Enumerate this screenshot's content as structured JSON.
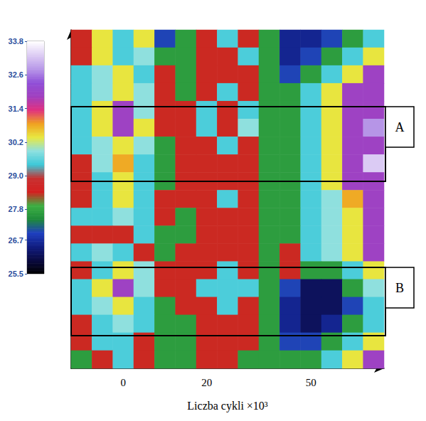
{
  "chart_data": {
    "type": "heatmap",
    "x_label": "Liczba cykli ×10³",
    "tick_labels": "x",
    "categories": [
      null,
      null,
      "0",
      null,
      null,
      null,
      "20",
      null,
      null,
      null,
      null,
      "50",
      null,
      null,
      null
    ],
    "cells": [
      [
        28.4,
        30.4,
        29.5,
        30.4,
        27.0,
        27.7,
        28.4,
        29.5,
        28.4,
        27.7,
        26.6,
        26.6,
        27.0,
        27.7,
        29.5
      ],
      [
        28.4,
        30.4,
        29.5,
        29.9,
        27.7,
        27.7,
        28.4,
        28.4,
        29.5,
        27.7,
        26.6,
        27.0,
        27.7,
        29.5,
        30.4
      ],
      [
        29.5,
        29.9,
        30.4,
        29.5,
        28.4,
        27.7,
        28.4,
        28.4,
        28.4,
        27.7,
        27.0,
        27.7,
        29.5,
        30.4,
        31.9
      ],
      [
        29.5,
        29.9,
        30.4,
        29.9,
        28.4,
        27.7,
        28.4,
        29.5,
        28.4,
        27.7,
        27.7,
        29.5,
        30.4,
        31.9,
        31.9
      ],
      [
        29.5,
        30.4,
        31.9,
        29.9,
        28.4,
        28.4,
        29.5,
        28.4,
        29.5,
        27.7,
        27.7,
        29.5,
        30.4,
        31.9,
        31.9
      ],
      [
        29.5,
        30.4,
        31.9,
        30.4,
        28.4,
        28.4,
        29.5,
        28.4,
        29.9,
        27.7,
        27.7,
        29.5,
        30.4,
        31.9,
        32.8
      ],
      [
        29.5,
        29.9,
        30.4,
        29.9,
        27.7,
        28.4,
        28.4,
        29.5,
        28.4,
        27.7,
        27.7,
        29.5,
        30.4,
        31.9,
        31.9
      ],
      [
        28.4,
        29.9,
        30.8,
        29.5,
        27.7,
        28.4,
        28.4,
        28.4,
        28.4,
        27.7,
        27.7,
        29.5,
        30.4,
        31.9,
        33.3
      ],
      [
        28.4,
        29.5,
        30.4,
        29.5,
        27.7,
        28.4,
        28.4,
        28.4,
        28.4,
        27.7,
        27.7,
        29.5,
        30.4,
        31.9,
        31.9
      ],
      [
        28.4,
        29.5,
        30.4,
        29.5,
        28.4,
        28.4,
        28.4,
        29.5,
        28.4,
        27.7,
        27.7,
        29.5,
        29.9,
        30.8,
        31.9
      ],
      [
        29.5,
        29.5,
        29.9,
        29.5,
        28.4,
        27.7,
        28.4,
        28.4,
        28.4,
        27.7,
        27.7,
        29.5,
        29.9,
        30.4,
        31.9
      ],
      [
        28.4,
        28.4,
        28.4,
        29.5,
        27.7,
        27.7,
        28.4,
        28.4,
        28.4,
        27.7,
        27.7,
        29.5,
        29.9,
        30.4,
        31.9
      ],
      [
        29.5,
        29.9,
        29.5,
        28.4,
        27.7,
        28.4,
        28.4,
        28.4,
        28.4,
        27.7,
        28.4,
        29.5,
        29.9,
        30.4,
        31.9
      ],
      [
        28.4,
        29.5,
        30.4,
        29.9,
        28.4,
        28.4,
        28.4,
        29.5,
        28.4,
        27.7,
        28.4,
        27.7,
        27.7,
        29.5,
        30.4
      ],
      [
        29.5,
        30.4,
        31.9,
        29.9,
        28.4,
        28.4,
        29.5,
        29.5,
        29.5,
        27.7,
        27.0,
        26.2,
        26.2,
        27.7,
        29.9
      ],
      [
        29.5,
        29.9,
        30.4,
        29.5,
        27.7,
        28.4,
        28.4,
        29.5,
        28.4,
        27.7,
        26.6,
        26.2,
        26.2,
        27.0,
        29.5
      ],
      [
        28.4,
        29.5,
        29.9,
        29.5,
        27.7,
        27.7,
        28.4,
        28.4,
        28.4,
        27.7,
        26.6,
        26.2,
        26.6,
        27.7,
        29.5
      ],
      [
        28.4,
        29.5,
        29.5,
        28.4,
        27.7,
        27.7,
        28.4,
        28.4,
        28.4,
        27.7,
        27.0,
        27.0,
        27.7,
        29.5,
        30.4
      ],
      [
        27.7,
        28.4,
        29.5,
        28.4,
        27.7,
        27.7,
        28.4,
        28.4,
        27.7,
        27.7,
        27.7,
        27.7,
        29.5,
        30.4,
        31.9
      ]
    ],
    "colorbar_range": [
      25.5,
      33.8
    ],
    "colorbar_ticks": [
      33.8,
      32.6,
      31.4,
      30.2,
      {
        "value": 29,
        "label": "29.0"
      },
      27.8,
      26.7,
      25.5
    ],
    "annotations": [
      "A",
      "B"
    ]
  }
}
